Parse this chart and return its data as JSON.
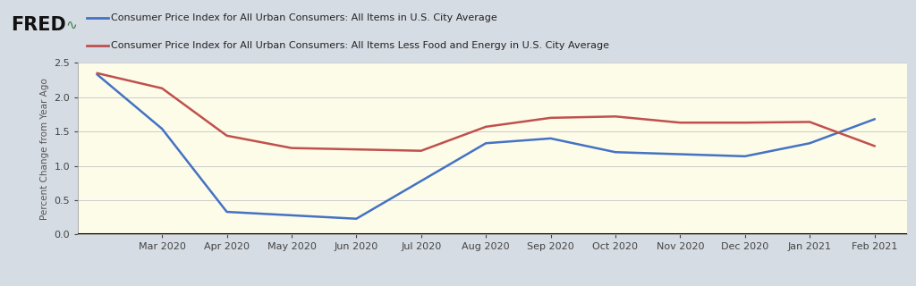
{
  "ylabel": "Percent Change from Year Ago",
  "background_outer": "#d6dce4",
  "background_inner": "#fdfce8",
  "x_labels": [
    "Mar 2020",
    "Apr 2020",
    "May 2020",
    "Jun 2020",
    "Jul 2020",
    "Aug 2020",
    "Sep 2020",
    "Oct 2020",
    "Nov 2020",
    "Dec 2020",
    "Jan 2021",
    "Feb 2021"
  ],
  "x_tick_positions": [
    1,
    2,
    3,
    4,
    5,
    6,
    7,
    8,
    9,
    10,
    11,
    12
  ],
  "blue_series": [
    2.33,
    1.54,
    0.33,
    0.28,
    0.23,
    0.78,
    1.33,
    1.4,
    1.2,
    1.17,
    1.14,
    1.33,
    1.68
  ],
  "red_series": [
    2.35,
    2.13,
    1.44,
    1.26,
    1.24,
    1.22,
    1.57,
    1.7,
    1.72,
    1.63,
    1.63,
    1.64,
    1.29
  ],
  "x_positions_blue": [
    0,
    1,
    2,
    3,
    4,
    5,
    6,
    7,
    8,
    9,
    10,
    11,
    12
  ],
  "x_positions_red": [
    0,
    1,
    2,
    3,
    4,
    5,
    6,
    7,
    8,
    9,
    10,
    11,
    12
  ],
  "ylim": [
    0.0,
    2.5
  ],
  "yticks": [
    0.0,
    0.5,
    1.0,
    1.5,
    2.0,
    2.5
  ],
  "blue_color": "#4472c4",
  "red_color": "#c0504d",
  "legend_label_blue": "Consumer Price Index for All Urban Consumers: All Items in U.S. City Average",
  "legend_label_red": "Consumer Price Index for All Urban Consumers: All Items Less Food and Energy in U.S. City Average",
  "line_width": 1.8
}
